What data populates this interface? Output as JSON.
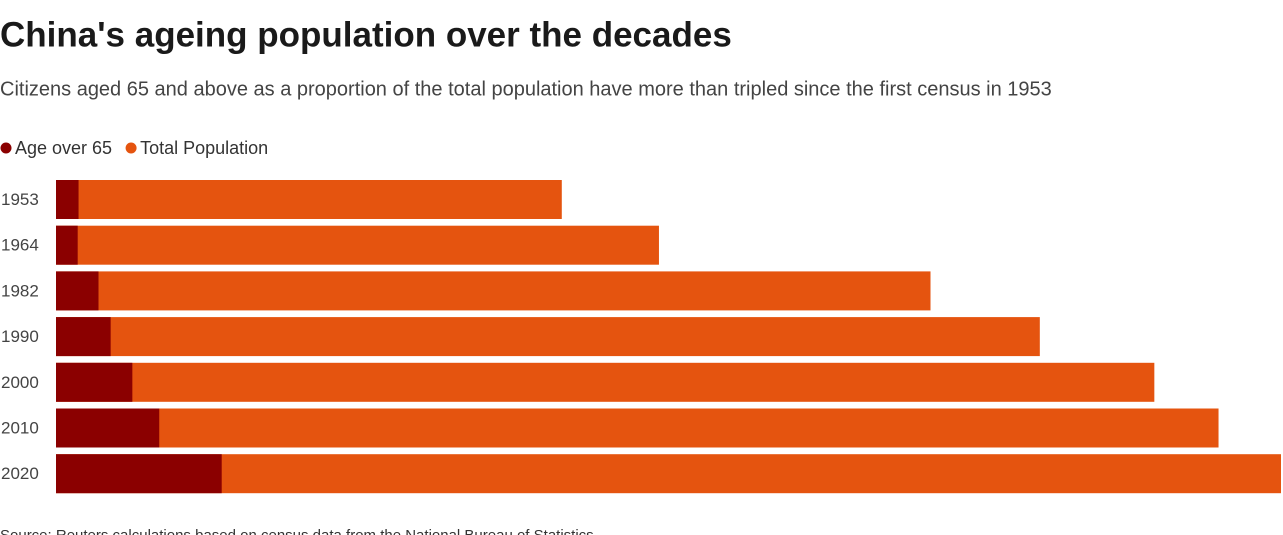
{
  "chart_data": {
    "type": "bar",
    "orientation": "horizontal",
    "overlay": true,
    "title": "China's ageing population over the decades",
    "subtitle": "Citizens aged 65 and above as a proportion of the total population have more than tripled since the first census in 1953",
    "source": "Source: Reuters calculations based on census data from the National Bureau of Statistics",
    "categories": [
      "1953",
      "1964",
      "1982",
      "1990",
      "2000",
      "2010",
      "2020"
    ],
    "series": [
      {
        "name": "Age over 65",
        "color": "#8b0000",
        "values": [
          26,
          25,
          49,
          63,
          88,
          119,
          191
        ]
      },
      {
        "name": "Total Population",
        "color": "#e5540f",
        "values": [
          583,
          695,
          1008,
          1134,
          1266,
          1340,
          1412
        ]
      }
    ],
    "xlim": [
      0,
      1412
    ]
  }
}
